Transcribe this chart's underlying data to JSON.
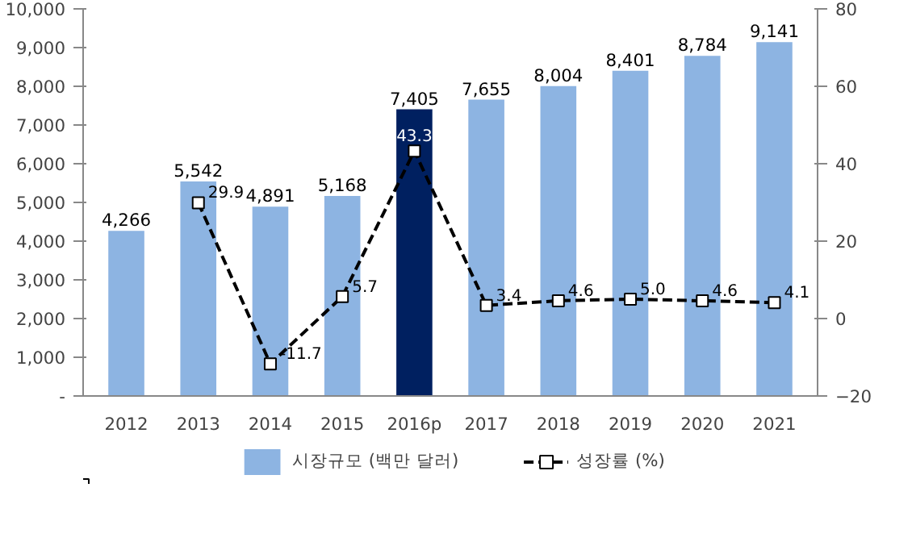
{
  "chart_data": {
    "type": "bar",
    "categories": [
      "2012",
      "2013",
      "2014",
      "2015",
      "2016p",
      "2017",
      "2018",
      "2019",
      "2020",
      "2021"
    ],
    "ylim": [
      0,
      10000
    ],
    "yticks": [
      {
        "value": 0,
        "label": "-"
      },
      {
        "value": 1000,
        "label": "1,000"
      },
      {
        "value": 2000,
        "label": "2,000"
      },
      {
        "value": 3000,
        "label": "3,000"
      },
      {
        "value": 4000,
        "label": "4,000"
      },
      {
        "value": 5000,
        "label": "5,000"
      },
      {
        "value": 6000,
        "label": "6,000"
      },
      {
        "value": 7000,
        "label": "7,000"
      },
      {
        "value": 8000,
        "label": "8,000"
      },
      {
        "value": 9000,
        "label": "9,000"
      },
      {
        "value": 10000,
        "label": "10,000"
      }
    ],
    "y2lim": [
      -20,
      80
    ],
    "y2ticks": [
      -20,
      0,
      20,
      40,
      60,
      80
    ],
    "legend": "bottom",
    "grid": false,
    "series": [
      {
        "name": "시장규모 (백만 달러)",
        "color": "#8db4e2",
        "colors": [
          "#8db4e2",
          "#8db4e2",
          "#8db4e2",
          "#8db4e2",
          "#002060",
          "#8db4e2",
          "#8db4e2",
          "#8db4e2",
          "#8db4e2",
          "#8db4e2"
        ],
        "values": [
          4266,
          5542,
          4891,
          5168,
          7405,
          7655,
          8004,
          8401,
          8784,
          9141
        ],
        "value_labels": [
          "4,266",
          "5,542",
          "4,891",
          "5,168",
          "7,405",
          "7,655",
          "8,004",
          "8,401",
          "8,784",
          "9,141"
        ]
      },
      {
        "name": "성장률 (%)",
        "type": "line",
        "axis": "y2",
        "color": "#000000",
        "marker": "square",
        "line_style": "dashed",
        "values": [
          null,
          29.9,
          -11.7,
          5.7,
          43.3,
          3.4,
          4.6,
          5.0,
          4.6,
          4.1
        ],
        "value_labels": [
          null,
          "29.9",
          "-11.7",
          "5.7",
          "43.3",
          "3.4",
          "4.6",
          "5.0",
          "4.6",
          "4.1"
        ]
      }
    ]
  }
}
